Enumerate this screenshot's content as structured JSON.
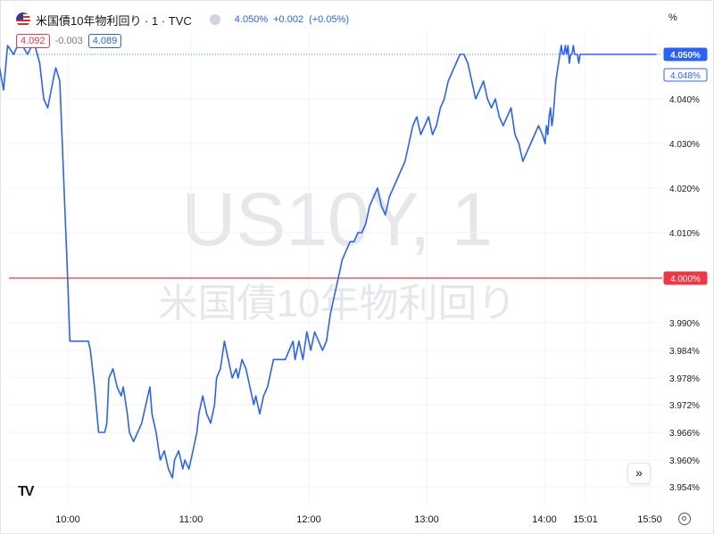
{
  "header": {
    "symbol": "米国債10年物利回り · 1 · TVC",
    "last": "4.050%",
    "change": "+0.002",
    "change_pct": "(+0.05%)",
    "bid": "4.092",
    "spread": "-0.003",
    "ask": "4.089",
    "scale_btn": "%"
  },
  "watermark": {
    "line1": "US10Y, 1",
    "line2": "米国債10年物利回り"
  },
  "colors": {
    "line": "#2962ff",
    "baseline": "#f23645",
    "grid": "#f0f3fa",
    "text": "#131722"
  },
  "icons": [
    "us-flag-icon",
    "tradingview-logo-icon",
    "double-chevron-right-icon",
    "settings-gear-icon"
  ],
  "chart_data": {
    "type": "line",
    "x_ticks": [
      "10:00",
      "11:00",
      "12:00",
      "13:00",
      "14:00",
      "15:01",
      "15:50"
    ],
    "y_ticks": [
      "4.040%",
      "4.030%",
      "4.020%",
      "4.010%",
      "3.990%",
      "3.984%",
      "3.978%",
      "3.972%",
      "3.966%",
      "3.960%",
      "3.954%"
    ],
    "y_tick_values": [
      4.04,
      4.03,
      4.02,
      4.01,
      3.99,
      3.984,
      3.978,
      3.972,
      3.966,
      3.96,
      3.954
    ],
    "price_labels": [
      {
        "value": 4.05,
        "text": "4.050%",
        "style": "filled"
      },
      {
        "value": 4.048,
        "text": "4.048%",
        "style": "outline"
      },
      {
        "value": 4.0,
        "text": "4.000%",
        "style": "red"
      }
    ],
    "baseline": 4.0,
    "last_value": 4.05,
    "x_range": [
      "09:26",
      "15:54"
    ],
    "x_tick_minutes": [
      600,
      660,
      720,
      780,
      840,
      901,
      950
    ],
    "y_ticks_note": "axis is non-linear below 4.000%",
    "y_anchor_values": [
      4.05,
      4.04,
      4.03,
      4.02,
      4.01,
      4.0,
      3.99,
      3.984,
      3.978,
      3.972,
      3.966,
      3.96,
      3.954
    ],
    "series": [
      {
        "t": [
          566,
          568,
          570,
          573,
          576,
          580,
          583,
          586,
          588,
          590,
          593,
          594,
          596,
          600,
          601,
          603,
          605,
          606,
          608,
          609,
          610,
          611,
          613,
          615,
          617,
          618,
          619,
          620,
          622,
          624,
          626,
          627,
          629,
          630,
          632,
          634,
          636,
          638,
          640,
          641,
          643,
          645,
          647,
          649,
          651,
          652,
          654,
          656,
          657,
          659,
          661,
          663,
          664,
          666,
          668,
          670,
          672,
          673,
          675,
          677,
          679,
          681,
          683,
          684,
          686,
          688,
          690,
          692,
          693,
          695,
          697,
          699,
          701,
          702,
          704,
          706,
          708,
          710,
          712,
          713,
          715,
          717,
          719,
          721,
          723,
          725,
          727,
          729,
          731,
          733,
          735,
          737,
          739,
          741,
          743,
          745,
          747,
          749,
          751,
          753,
          755,
          757,
          759,
          761,
          763,
          765,
          767,
          769,
          771,
          773,
          775,
          777,
          779,
          781,
          783,
          785,
          787,
          789,
          791,
          793,
          795,
          797,
          799,
          801,
          803,
          805,
          807,
          809,
          811,
          813,
          815,
          817,
          819,
          821,
          823,
          825,
          827,
          829,
          831,
          833,
          835,
          837,
          839,
          841,
          843,
          845,
          847,
          849,
          851,
          853,
          855,
          857,
          859,
          861,
          863,
          865,
          867,
          869,
          871,
          873,
          875,
          877,
          879,
          881,
          883,
          885,
          887,
          889,
          891,
          893,
          895,
          897,
          899,
          901,
          903,
          905,
          907,
          909,
          911,
          913,
          915,
          917,
          919,
          921,
          923,
          925,
          927,
          929,
          931,
          933,
          935,
          937,
          939,
          941,
          943,
          945,
          947,
          949,
          951,
          953,
          955
        ],
        "v": [
          4.047,
          4.042,
          4.052,
          4.05,
          4.053,
          4.05,
          4.053,
          4.048,
          4.04,
          4.038,
          4.045,
          4.047,
          4.044,
          3.999,
          3.986,
          3.986,
          3.986,
          3.986,
          3.986,
          3.986,
          3.986,
          3.984,
          3.976,
          3.966,
          3.966,
          3.966,
          3.968,
          3.978,
          3.98,
          3.976,
          3.974,
          3.976,
          3.97,
          3.966,
          3.964,
          3.966,
          3.968,
          3.972,
          3.976,
          3.97,
          3.966,
          3.96,
          3.962,
          3.958,
          3.956,
          3.96,
          3.962,
          3.958,
          3.96,
          3.958,
          3.962,
          3.966,
          3.97,
          3.974,
          3.97,
          3.968,
          3.972,
          3.978,
          3.98,
          3.986,
          3.982,
          3.978,
          3.98,
          3.978,
          3.982,
          3.98,
          3.976,
          3.972,
          3.974,
          3.97,
          3.974,
          3.976,
          3.98,
          3.982,
          3.982,
          3.982,
          3.982,
          3.984,
          3.986,
          3.982,
          3.986,
          3.982,
          3.988,
          3.984,
          3.988,
          3.986,
          3.984,
          3.986,
          3.992,
          3.996,
          4.0,
          4.004,
          4.006,
          4.008,
          4.008,
          4.01,
          4.01,
          4.012,
          4.016,
          4.018,
          4.02,
          4.016,
          4.014,
          4.018,
          4.02,
          4.022,
          4.024,
          4.026,
          4.03,
          4.034,
          4.036,
          4.032,
          4.034,
          4.036,
          4.032,
          4.034,
          4.038,
          4.04,
          4.044,
          4.046,
          4.048,
          4.05,
          4.05,
          4.048,
          4.044,
          4.04,
          4.042,
          4.044,
          4.04,
          4.038,
          4.04,
          4.036,
          4.034,
          4.036,
          4.038,
          4.032,
          4.03,
          4.026,
          4.028,
          4.03,
          4.032,
          4.034,
          4.032,
          4.03,
          4.034,
          4.032,
          4.036,
          4.038,
          4.034,
          4.036,
          4.04,
          4.044,
          4.046,
          4.048,
          4.05,
          4.052,
          4.05,
          4.05,
          4.052,
          4.05,
          4.052,
          4.048,
          4.05,
          4.05,
          4.052,
          4.05,
          4.05,
          4.05,
          4.048,
          4.05,
          4.05,
          4.05,
          4.05,
          4.05,
          4.05,
          4.05,
          4.05,
          4.05,
          4.05,
          4.05,
          4.05,
          4.05,
          4.05,
          4.05,
          4.05,
          4.05,
          4.05,
          4.05,
          4.05,
          4.05,
          4.05,
          4.05,
          4.05,
          4.05,
          4.05,
          4.05,
          4.05,
          4.05,
          4.05,
          4.05,
          4.05,
          4.05,
          4.05,
          4.05,
          4.05,
          4.05,
          4.05,
          4.05,
          4.05,
          4.05,
          4.05,
          4.05,
          4.05,
          4.05,
          4.05
        ]
      }
    ]
  }
}
